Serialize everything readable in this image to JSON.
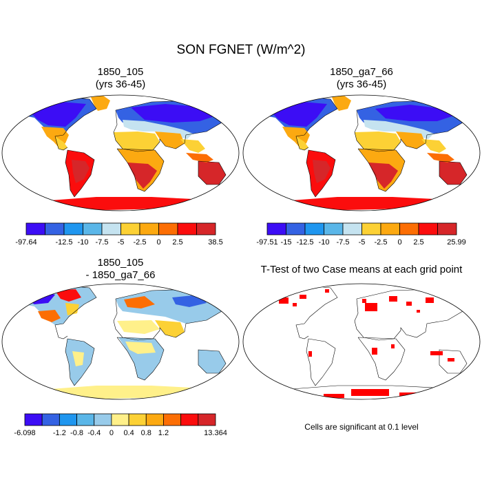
{
  "title": "SON FGNET (W/m^2)",
  "panels": [
    {
      "id": "p1",
      "title_line1": "1850_105",
      "title_line2": "(yrs 36-45)",
      "field": "mean"
    },
    {
      "id": "p2",
      "title_line1": "1850_ga7_66",
      "title_line2": "(yrs 36-45)",
      "field": "mean"
    },
    {
      "id": "p3",
      "title_line1": "1850_105",
      "title_line2": "- 1850_ga7_66",
      "field": "difference"
    },
    {
      "id": "p4",
      "title_line1": "T-Test of two Case means at each grid point",
      "field": "significance"
    }
  ],
  "colorbars": {
    "cb1": {
      "colors": [
        "#3c0df5",
        "#3462e3",
        "#1f96ef",
        "#5ab6e8",
        "#c5e3f0",
        "#fcd135",
        "#fca911",
        "#fc6e04",
        "#fb0d0d",
        "#d62629"
      ],
      "labels": [
        "-97.64",
        "",
        "-12.5",
        "-10",
        "-7.5",
        "-5",
        "-2.5",
        "0",
        "2.5",
        "38.5"
      ]
    },
    "cb2": {
      "colors": [
        "#3c0df5",
        "#3462e3",
        "#1f96ef",
        "#5ab6e8",
        "#c5e3f0",
        "#fcd135",
        "#fca911",
        "#fc6e04",
        "#fb0d0d",
        "#d62629"
      ],
      "labels": [
        "-97.51",
        "-15",
        "-12.5",
        "-10",
        "-7.5",
        "-5",
        "-2.5",
        "0",
        "2.5",
        "25.99"
      ]
    },
    "cb3": {
      "colors": [
        "#3c0df5",
        "#3462e3",
        "#1f96ef",
        "#5ab6e8",
        "#98cbea",
        "#fff08a",
        "#fcd135",
        "#fca911",
        "#fc6e04",
        "#fb0d0d",
        "#d62629"
      ],
      "labels": [
        "-6.098",
        "",
        "-1.2",
        "-0.8",
        "-0.4",
        "0",
        "0.4",
        "0.8",
        "1.2",
        "13.364"
      ]
    }
  },
  "significance": {
    "color": "#ff0000",
    "note": "Cells are significant at 0.1 level"
  }
}
